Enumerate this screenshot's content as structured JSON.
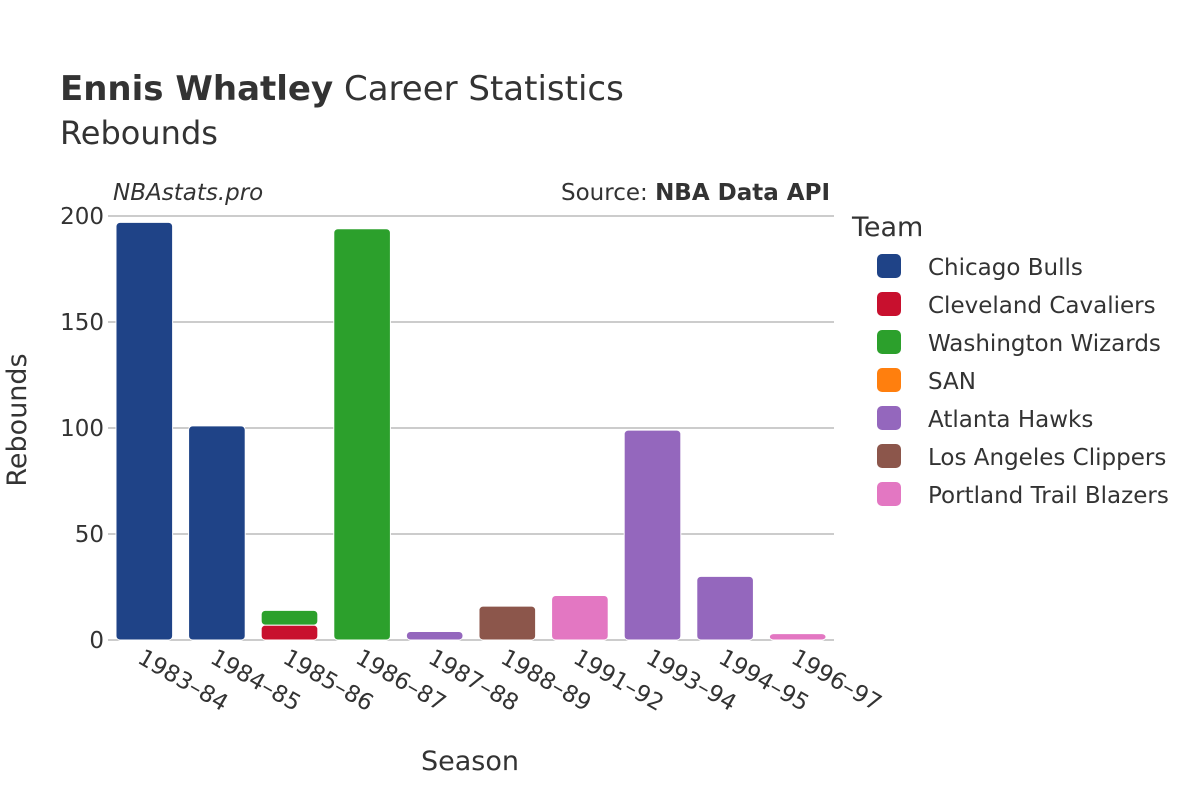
{
  "title": {
    "bold": "Ennis Whatley",
    "rest": " Career Statistics",
    "subtitle": "Rebounds"
  },
  "watermark": "NBAstats.pro",
  "source": {
    "prefix": "Source: ",
    "name": "NBA Data API"
  },
  "chart_data": {
    "type": "bar",
    "stacked": true,
    "xlabel": "Season",
    "ylabel": "Rebounds",
    "ylim": [
      0,
      200
    ],
    "yticks": [
      0,
      50,
      100,
      150,
      200
    ],
    "grid": true,
    "legend_title": "Team",
    "legend_position": "right",
    "categories": [
      "1983–84",
      "1984–85",
      "1985–86",
      "1986–87",
      "1987–88",
      "1988–89",
      "1991–92",
      "1993–94",
      "1994–95",
      "1996–97"
    ],
    "series": [
      {
        "name": "Chicago Bulls",
        "color": "#1f4387",
        "values": [
          197,
          101,
          0,
          0,
          0,
          0,
          0,
          0,
          0,
          0
        ]
      },
      {
        "name": "Cleveland Cavaliers",
        "color": "#c8102e",
        "values": [
          0,
          0,
          7,
          0,
          0,
          0,
          0,
          0,
          0,
          0
        ]
      },
      {
        "name": "Washington Wizards",
        "color": "#2ca02c",
        "values": [
          0,
          0,
          7,
          194,
          0,
          0,
          0,
          0,
          0,
          0
        ]
      },
      {
        "name": "SAN",
        "color": "#ff7f0e",
        "values": [
          0,
          0,
          0,
          0,
          0,
          0,
          0,
          0,
          0,
          0
        ]
      },
      {
        "name": "Atlanta Hawks",
        "color": "#9467bd",
        "values": [
          0,
          0,
          0,
          0,
          4,
          0,
          0,
          99,
          30,
          0
        ]
      },
      {
        "name": "Los Angeles Clippers",
        "color": "#8c564b",
        "values": [
          0,
          0,
          0,
          0,
          0,
          16,
          0,
          0,
          0,
          0
        ]
      },
      {
        "name": "Portland Trail Blazers",
        "color": "#e377c2",
        "values": [
          0,
          0,
          0,
          0,
          0,
          0,
          21,
          0,
          0,
          3
        ]
      }
    ]
  }
}
